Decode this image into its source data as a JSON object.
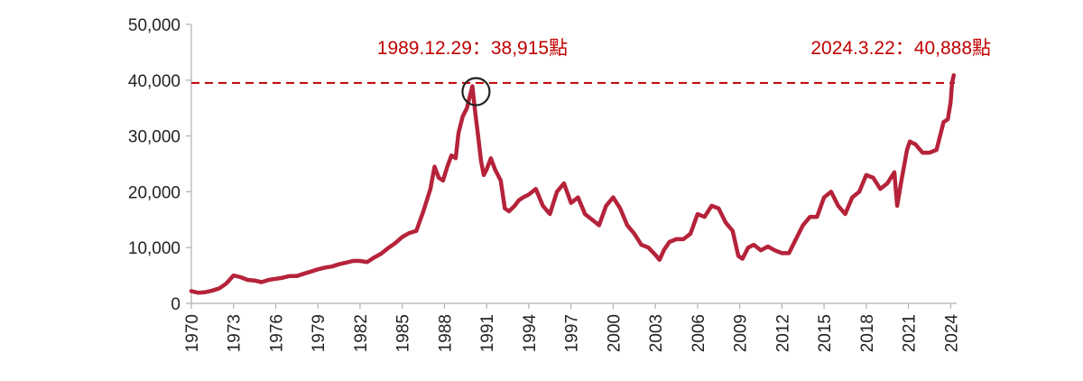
{
  "chart_data": {
    "type": "line",
    "title": "",
    "xlabel": "",
    "ylabel": "",
    "xlim": [
      1970,
      2024.3
    ],
    "ylim": [
      0,
      50000
    ],
    "grid": false,
    "legend": "none",
    "line_color": "#b5233a",
    "reference_color": "#c00000",
    "y_ticks": [
      0,
      10000,
      20000,
      30000,
      40000,
      50000
    ],
    "y_tick_labels": [
      "0",
      "10,000",
      "20,000",
      "30,000",
      "40,000",
      "50,000"
    ],
    "x_ticks": [
      1970,
      1973,
      1976,
      1979,
      1982,
      1985,
      1988,
      1991,
      1994,
      1997,
      2000,
      2003,
      2006,
      2009,
      2012,
      2015,
      2018,
      2021,
      2024
    ],
    "x_tick_labels": [
      "1970",
      "1973",
      "1976",
      "1979",
      "1982",
      "1985",
      "1988",
      "1991",
      "1994",
      "1997",
      "2000",
      "2003",
      "2006",
      "2009",
      "2012",
      "2015",
      "2018",
      "2021",
      "2024"
    ],
    "reference_line_y": 39500,
    "series": [
      {
        "x": [
          1970.0,
          1970.5,
          1971.0,
          1971.5,
          1972.0,
          1972.5,
          1973.0,
          1973.5,
          1974.0,
          1974.5,
          1975.0,
          1975.5,
          1976.0,
          1976.5,
          1977.0,
          1977.5,
          1978.0,
          1978.5,
          1979.0,
          1979.5,
          1980.0,
          1980.5,
          1981.0,
          1981.5,
          1982.0,
          1982.5,
          1983.0,
          1983.5,
          1984.0,
          1984.5,
          1985.0,
          1985.5,
          1986.0,
          1986.5,
          1987.0,
          1987.3,
          1987.6,
          1987.9,
          1988.2,
          1988.5,
          1988.8,
          1989.0,
          1989.3,
          1989.6,
          1989.99,
          1990.2,
          1990.4,
          1990.6,
          1990.8,
          1991.0,
          1991.3,
          1991.6,
          1992.0,
          1992.3,
          1992.6,
          1993.0,
          1993.3,
          1993.6,
          1994.0,
          1994.5,
          1995.0,
          1995.5,
          1996.0,
          1996.5,
          1997.0,
          1997.5,
          1998.0,
          1998.5,
          1999.0,
          1999.5,
          2000.0,
          2000.5,
          2001.0,
          2001.5,
          2002.0,
          2002.5,
          2003.0,
          2003.3,
          2003.6,
          2004.0,
          2004.5,
          2005.0,
          2005.5,
          2006.0,
          2006.5,
          2007.0,
          2007.5,
          2008.0,
          2008.5,
          2008.9,
          2009.2,
          2009.6,
          2010.0,
          2010.5,
          2011.0,
          2011.5,
          2012.0,
          2012.5,
          2013.0,
          2013.5,
          2014.0,
          2014.5,
          2015.0,
          2015.5,
          2016.0,
          2016.5,
          2017.0,
          2017.5,
          2018.0,
          2018.5,
          2019.0,
          2019.5,
          2020.0,
          2020.2,
          2020.5,
          2020.9,
          2021.1,
          2021.5,
          2022.0,
          2022.5,
          2023.0,
          2023.5,
          2023.8,
          2024.0,
          2024.1,
          2024.22
        ],
        "values": [
          2200,
          1900,
          2000,
          2300,
          2700,
          3600,
          5000,
          4700,
          4200,
          4100,
          3800,
          4200,
          4400,
          4600,
          4900,
          4900,
          5300,
          5700,
          6100,
          6400,
          6600,
          7000,
          7300,
          7600,
          7600,
          7400,
          8200,
          8900,
          9900,
          10800,
          11900,
          12600,
          13000,
          16500,
          20500,
          24500,
          22500,
          22000,
          24500,
          26500,
          26000,
          30500,
          33500,
          35000,
          38915,
          34000,
          30000,
          25500,
          23000,
          24000,
          26000,
          24000,
          22000,
          17000,
          16500,
          17500,
          18500,
          19000,
          19500,
          20500,
          17500,
          16000,
          20000,
          21500,
          18000,
          19000,
          16000,
          15000,
          14000,
          17500,
          19000,
          17000,
          14000,
          12500,
          10500,
          10000,
          8700,
          7800,
          9500,
          11000,
          11500,
          11500,
          12500,
          16000,
          15500,
          17500,
          17000,
          14500,
          13000,
          8500,
          8000,
          10000,
          10500,
          9500,
          10200,
          9500,
          9000,
          9000,
          11500,
          14000,
          15500,
          15500,
          19000,
          20000,
          17500,
          16000,
          19000,
          20000,
          23000,
          22500,
          20500,
          21500,
          23500,
          17500,
          22000,
          27500,
          29000,
          28500,
          27000,
          27000,
          27500,
          32500,
          33000,
          36000,
          39500,
          40888
        ]
      }
    ],
    "annotations": [
      {
        "label": "1989.12.29：38,915點",
        "x": 1989.99,
        "y": 38915,
        "marker": "circle"
      },
      {
        "label": "2024.3.22：40,888點",
        "x": 2024.22,
        "y": 40888,
        "marker": "none"
      }
    ]
  }
}
